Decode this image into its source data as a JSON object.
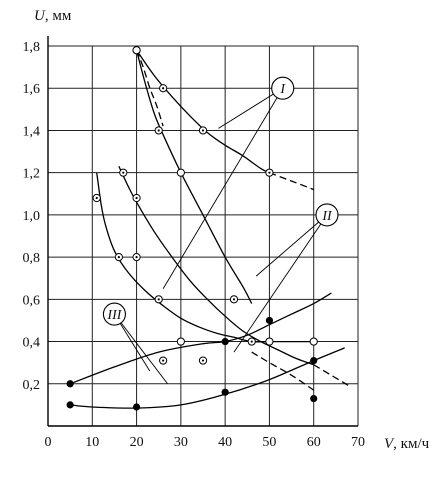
{
  "chart_data": {
    "type": "scatter",
    "title": "",
    "ylabel_var": "U",
    "ylabel_unit": ", мм",
    "xlabel_var": "V",
    "xlabel_unit": ", км/ч",
    "xlim": [
      0,
      70
    ],
    "ylim": [
      0,
      1.8
    ],
    "xticks": [
      0,
      10,
      20,
      30,
      40,
      50,
      60,
      70
    ],
    "yticks": [
      0.2,
      0.4,
      0.6,
      0.8,
      1.0,
      1.2,
      1.4,
      1.6,
      1.8
    ],
    "xtick_labels": [
      "0",
      "10",
      "20",
      "30",
      "40",
      "50",
      "60",
      "70"
    ],
    "ytick_labels": [
      "0,2",
      "0,4",
      "0,6",
      "0,8",
      "1,0",
      "1,2",
      "1,4",
      "1,6",
      "1,8"
    ],
    "grid": true,
    "series": [
      {
        "name": "I",
        "points_marker": "dotted-circle",
        "points": [
          [
            20,
            1.78
          ],
          [
            26,
            1.6
          ],
          [
            25,
            1.4
          ],
          [
            35,
            1.4
          ],
          [
            50,
            1.2
          ]
        ],
        "curve_solid": [
          [
            20,
            1.78
          ],
          [
            24,
            1.66
          ],
          [
            28,
            1.56
          ],
          [
            32,
            1.47
          ],
          [
            36,
            1.39
          ],
          [
            40,
            1.33
          ],
          [
            44,
            1.28
          ],
          [
            48,
            1.22
          ],
          [
            50,
            1.2
          ]
        ],
        "curve_dashed": [
          [
            50,
            1.2
          ],
          [
            55,
            1.16
          ],
          [
            60,
            1.12
          ]
        ]
      },
      {
        "name": "I",
        "points_marker": "open-circle",
        "points": [
          [
            20,
            1.78
          ],
          [
            30,
            1.2
          ]
        ],
        "curve_solid": [
          [
            20,
            1.78
          ],
          [
            22,
            1.62
          ],
          [
            24,
            1.48
          ],
          [
            26,
            1.38
          ],
          [
            30,
            1.2
          ],
          [
            35,
            1.0
          ],
          [
            40,
            0.8
          ],
          [
            44,
            0.66
          ],
          [
            46,
            0.58
          ]
        ],
        "curve_dashed": [
          [
            20,
            1.78
          ],
          [
            21.5,
            1.7
          ],
          [
            23,
            1.6
          ],
          [
            24.5,
            1.52
          ],
          [
            26,
            1.42
          ]
        ]
      },
      {
        "name": "II",
        "points_marker": "dotted-circle",
        "points": [
          [
            11,
            1.08
          ],
          [
            17,
            1.2
          ],
          [
            20,
            1.08
          ],
          [
            16,
            0.8
          ],
          [
            20,
            0.8
          ],
          [
            25,
            0.6
          ]
        ],
        "curve_solid": [
          [
            16,
            1.23
          ],
          [
            18,
            1.14
          ],
          [
            20,
            1.06
          ],
          [
            24,
            0.92
          ],
          [
            28,
            0.8
          ],
          [
            32,
            0.69
          ],
          [
            36,
            0.6
          ],
          [
            40,
            0.52
          ],
          [
            44,
            0.45
          ],
          [
            48,
            0.4
          ],
          [
            52,
            0.36
          ],
          [
            56,
            0.32
          ],
          [
            60,
            0.29
          ]
        ],
        "curve_dashed": [
          [
            60,
            0.29
          ],
          [
            64,
            0.24
          ],
          [
            68,
            0.19
          ]
        ]
      },
      {
        "name": "II",
        "points_marker": "open-circle",
        "points": [
          [
            30,
            0.4
          ],
          [
            50,
            0.4
          ],
          [
            60,
            0.4
          ]
        ],
        "curve_solid": [
          [
            11,
            1.2
          ],
          [
            12,
            1.05
          ],
          [
            13,
            0.95
          ],
          [
            15,
            0.83
          ],
          [
            18,
            0.73
          ],
          [
            22,
            0.64
          ],
          [
            26,
            0.57
          ],
          [
            30,
            0.51
          ],
          [
            34,
            0.47
          ],
          [
            38,
            0.44
          ],
          [
            42,
            0.42
          ],
          [
            46,
            0.4
          ],
          [
            50,
            0.4
          ],
          [
            55,
            0.4
          ],
          [
            60,
            0.4
          ]
        ],
        "curve_dashed": [
          [
            46,
            0.35
          ],
          [
            50,
            0.3
          ],
          [
            55,
            0.24
          ],
          [
            60,
            0.17
          ]
        ]
      },
      {
        "name": "III",
        "points_marker": "filled-circle",
        "points": [
          [
            5,
            0.2
          ],
          [
            40,
            0.4
          ],
          [
            50,
            0.5
          ],
          [
            5,
            0.1
          ],
          [
            20,
            0.09
          ],
          [
            40,
            0.16
          ],
          [
            60,
            0.31
          ],
          [
            60,
            0.13
          ]
        ],
        "curve_upper": [
          [
            5,
            0.2
          ],
          [
            15,
            0.28
          ],
          [
            25,
            0.35
          ],
          [
            35,
            0.39
          ],
          [
            40,
            0.4
          ],
          [
            45,
            0.43
          ],
          [
            50,
            0.48
          ],
          [
            55,
            0.53
          ],
          [
            60,
            0.58
          ],
          [
            64,
            0.63
          ]
        ],
        "curve_lower": [
          [
            5,
            0.1
          ],
          [
            10,
            0.09
          ],
          [
            20,
            0.085
          ],
          [
            30,
            0.1
          ],
          [
            40,
            0.15
          ],
          [
            50,
            0.22
          ],
          [
            60,
            0.31
          ],
          [
            67,
            0.37
          ]
        ]
      },
      {
        "name": "III",
        "points_marker": "dotted-circle",
        "points": [
          [
            26,
            0.31
          ],
          [
            35,
            0.31
          ],
          [
            42,
            0.6
          ],
          [
            46,
            0.4
          ]
        ]
      }
    ],
    "legend_labels": [
      {
        "text": "I",
        "at": [
          53,
          1.6
        ]
      },
      {
        "text": "II",
        "at": [
          63,
          1.0
        ]
      },
      {
        "text": "III",
        "at": [
          15,
          0.53
        ]
      }
    ],
    "leader_lines": [
      {
        "from": [
          53,
          1.6
        ],
        "to": [
          [
            38.5,
            1.41
          ],
          [
            26,
            0.65
          ]
        ]
      },
      {
        "from": [
          63,
          1.0
        ],
        "to": [
          [
            47,
            0.71
          ],
          [
            42,
            0.35
          ]
        ]
      },
      {
        "from": [
          15,
          0.53
        ],
        "to": [
          [
            23,
            0.26
          ],
          [
            27,
            0.2
          ]
        ]
      }
    ]
  }
}
